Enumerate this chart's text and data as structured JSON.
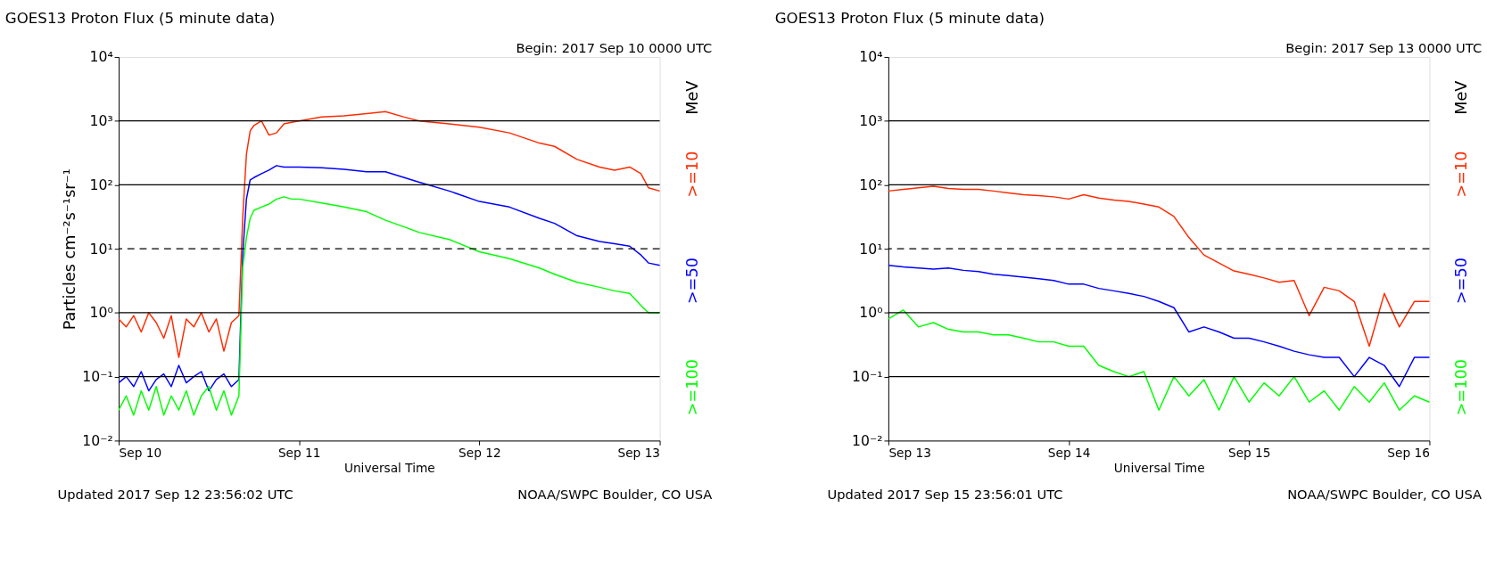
{
  "chart_data": [
    {
      "type": "line",
      "title": "GOES13 Proton Flux (5 minute data)",
      "subtitle": "Begin: 2017 Sep 10 0000 UTC",
      "xlabel": "Universal Time",
      "ylabel": "Particles cm⁻²s⁻¹sr⁻¹",
      "legend": "right",
      "legend_title": "MeV",
      "log": true,
      "annotations": [
        "Updated 2017 Sep 12 23:56:02 UTC",
        "NOAA/SWPC Boulder, CO USA"
      ],
      "xlim": [
        "2017-09-10T00:00",
        "2017-09-13T00:00"
      ],
      "xticks": [
        {
          "value": "2017-09-10T00:00",
          "label": "Sep 10"
        },
        {
          "value": "2017-09-11T00:00",
          "label": "Sep 11"
        },
        {
          "value": "2017-09-12T00:00",
          "label": "Sep 12"
        },
        {
          "value": "2017-09-13T00:00",
          "label": "Sep 13"
        }
      ],
      "ylim": [
        0.01,
        10000
      ],
      "yticks": [
        {
          "value": 0.01,
          "label": "10⁻²"
        },
        {
          "value": 0.1,
          "label": "10⁻¹"
        },
        {
          "value": 1,
          "label": "10⁰"
        },
        {
          "value": 10,
          "label": "10¹"
        },
        {
          "value": 100,
          "label": "10²"
        },
        {
          "value": 1000,
          "label": "10³"
        },
        {
          "value": 10000,
          "label": "10⁴"
        }
      ],
      "ref_lines": [
        {
          "axis": "y",
          "value": 1000,
          "line_style": "solid",
          "color": "#000000"
        },
        {
          "axis": "y",
          "value": 100,
          "line_style": "solid",
          "color": "#000000"
        },
        {
          "axis": "y",
          "value": 10,
          "line_style": "dashed",
          "color": "#000000"
        },
        {
          "axis": "y",
          "value": 1,
          "line_style": "solid",
          "color": "#000000"
        },
        {
          "axis": "y",
          "value": 0.1,
          "line_style": "solid",
          "color": "#000000"
        }
      ],
      "x": [
        "2017-09-10T00:00",
        "2017-09-10T01:00",
        "2017-09-10T02:00",
        "2017-09-10T03:00",
        "2017-09-10T04:00",
        "2017-09-10T05:00",
        "2017-09-10T06:00",
        "2017-09-10T07:00",
        "2017-09-10T08:00",
        "2017-09-10T09:00",
        "2017-09-10T10:00",
        "2017-09-10T11:00",
        "2017-09-10T12:00",
        "2017-09-10T13:00",
        "2017-09-10T14:00",
        "2017-09-10T15:00",
        "2017-09-10T16:00",
        "2017-09-10T16:30",
        "2017-09-10T17:00",
        "2017-09-10T17:30",
        "2017-09-10T18:00",
        "2017-09-10T19:00",
        "2017-09-10T20:00",
        "2017-09-10T21:00",
        "2017-09-10T22:00",
        "2017-09-10T23:00",
        "2017-09-11T00:00",
        "2017-09-11T03:00",
        "2017-09-11T06:00",
        "2017-09-11T09:00",
        "2017-09-11T11:30",
        "2017-09-11T14:00",
        "2017-09-11T16:00",
        "2017-09-11T20:00",
        "2017-09-12T00:00",
        "2017-09-12T04:00",
        "2017-09-12T08:00",
        "2017-09-12T10:00",
        "2017-09-12T13:00",
        "2017-09-12T16:00",
        "2017-09-12T18:00",
        "2017-09-12T20:00",
        "2017-09-12T21:30",
        "2017-09-12T22:30",
        "2017-09-13T00:00"
      ],
      "series": [
        {
          "name": ">=10",
          "color": "#ff2a00",
          "values": [
            0.8,
            0.6,
            0.9,
            0.5,
            1.0,
            0.7,
            0.4,
            0.9,
            0.2,
            0.8,
            0.6,
            1.0,
            0.5,
            0.8,
            0.25,
            0.7,
            0.9,
            30,
            300,
            700,
            850,
            1000,
            600,
            650,
            900,
            950,
            1000,
            1150,
            1200,
            1300,
            1400,
            1150,
            1000,
            900,
            800,
            650,
            450,
            400,
            250,
            190,
            170,
            190,
            150,
            90,
            80
          ]
        },
        {
          "name": ">=50",
          "color": "#0000ff",
          "values": [
            0.08,
            0.1,
            0.07,
            0.12,
            0.06,
            0.09,
            0.11,
            0.07,
            0.15,
            0.08,
            0.1,
            0.12,
            0.06,
            0.09,
            0.11,
            0.07,
            0.09,
            8,
            60,
            120,
            130,
            150,
            170,
            200,
            190,
            190,
            190,
            185,
            175,
            160,
            160,
            130,
            110,
            80,
            55,
            45,
            30,
            25,
            16,
            13,
            12,
            11,
            8,
            6,
            5.5
          ]
        },
        {
          "name": ">=100",
          "color": "#00ff00",
          "values": [
            0.03,
            0.05,
            0.025,
            0.06,
            0.03,
            0.07,
            0.025,
            0.05,
            0.03,
            0.06,
            0.025,
            0.05,
            0.07,
            0.03,
            0.06,
            0.025,
            0.05,
            5,
            15,
            30,
            40,
            45,
            50,
            60,
            65,
            60,
            60,
            52,
            45,
            38,
            28,
            22,
            18,
            14,
            9,
            7,
            5,
            4,
            3,
            2.5,
            2.2,
            2,
            1.3,
            1.0,
            1.0
          ]
        }
      ]
    },
    {
      "type": "line",
      "title": "GOES13 Proton Flux (5 minute data)",
      "subtitle": "Begin: 2017 Sep 13 0000 UTC",
      "xlabel": "Universal Time",
      "legend": "right",
      "legend_title": "MeV",
      "log": true,
      "annotations": [
        "Updated 2017 Sep 15 23:56:01 UTC",
        "NOAA/SWPC Boulder, CO USA"
      ],
      "xlim": [
        "2017-09-13T00:00",
        "2017-09-16T00:00"
      ],
      "xticks": [
        {
          "value": "2017-09-13T00:00",
          "label": "Sep 13"
        },
        {
          "value": "2017-09-14T00:00",
          "label": "Sep 14"
        },
        {
          "value": "2017-09-15T00:00",
          "label": "Sep 15"
        },
        {
          "value": "2017-09-16T00:00",
          "label": "Sep 16"
        }
      ],
      "ylim": [
        0.01,
        10000
      ],
      "yticks": [
        {
          "value": 0.01,
          "label": "10⁻²"
        },
        {
          "value": 0.1,
          "label": "10⁻¹"
        },
        {
          "value": 1,
          "label": "10⁰"
        },
        {
          "value": 10,
          "label": "10¹"
        },
        {
          "value": 100,
          "label": "10²"
        },
        {
          "value": 1000,
          "label": "10³"
        },
        {
          "value": 10000,
          "label": "10⁴"
        }
      ],
      "ref_lines": [
        {
          "axis": "y",
          "value": 1000,
          "line_style": "solid",
          "color": "#000000"
        },
        {
          "axis": "y",
          "value": 100,
          "line_style": "solid",
          "color": "#000000"
        },
        {
          "axis": "y",
          "value": 10,
          "line_style": "dashed",
          "color": "#000000"
        },
        {
          "axis": "y",
          "value": 1,
          "line_style": "solid",
          "color": "#000000"
        },
        {
          "axis": "y",
          "value": 0.1,
          "line_style": "solid",
          "color": "#000000"
        }
      ],
      "x": [
        "2017-09-13T00:00",
        "2017-09-13T02:00",
        "2017-09-13T04:00",
        "2017-09-13T06:00",
        "2017-09-13T08:00",
        "2017-09-13T10:00",
        "2017-09-13T12:00",
        "2017-09-13T14:00",
        "2017-09-13T16:00",
        "2017-09-13T18:00",
        "2017-09-13T20:00",
        "2017-09-13T22:00",
        "2017-09-14T00:00",
        "2017-09-14T02:00",
        "2017-09-14T04:00",
        "2017-09-14T06:00",
        "2017-09-14T08:00",
        "2017-09-14T10:00",
        "2017-09-14T12:00",
        "2017-09-14T14:00",
        "2017-09-14T16:00",
        "2017-09-14T18:00",
        "2017-09-14T20:00",
        "2017-09-14T22:00",
        "2017-09-15T00:00",
        "2017-09-15T02:00",
        "2017-09-15T04:00",
        "2017-09-15T06:00",
        "2017-09-15T08:00",
        "2017-09-15T10:00",
        "2017-09-15T12:00",
        "2017-09-15T14:00",
        "2017-09-15T16:00",
        "2017-09-15T18:00",
        "2017-09-15T20:00",
        "2017-09-15T22:00",
        "2017-09-16T00:00"
      ],
      "series": [
        {
          "name": ">=10",
          "color": "#ff2a00",
          "values": [
            80,
            85,
            90,
            95,
            88,
            85,
            85,
            80,
            75,
            70,
            68,
            65,
            60,
            70,
            62,
            58,
            55,
            50,
            45,
            32,
            15,
            8,
            6,
            4.5,
            4,
            3.5,
            3,
            3.2,
            0.9,
            2.5,
            2.2,
            1.5,
            0.3,
            2,
            0.6,
            1.5,
            1.5
          ]
        },
        {
          "name": ">=50",
          "color": "#0000ff",
          "values": [
            5.5,
            5.2,
            5,
            4.8,
            5,
            4.6,
            4.4,
            4,
            3.8,
            3.6,
            3.4,
            3.2,
            2.8,
            2.8,
            2.4,
            2.2,
            2,
            1.8,
            1.5,
            1.2,
            0.5,
            0.6,
            0.5,
            0.4,
            0.4,
            0.35,
            0.3,
            0.25,
            0.22,
            0.2,
            0.2,
            0.1,
            0.2,
            0.15,
            0.07,
            0.2,
            0.2
          ]
        },
        {
          "name": ">=100",
          "color": "#00ff00",
          "values": [
            0.8,
            1.1,
            0.6,
            0.7,
            0.55,
            0.5,
            0.5,
            0.45,
            0.45,
            0.4,
            0.35,
            0.35,
            0.3,
            0.3,
            0.15,
            0.12,
            0.1,
            0.12,
            0.03,
            0.1,
            0.05,
            0.09,
            0.03,
            0.1,
            0.04,
            0.08,
            0.05,
            0.1,
            0.04,
            0.06,
            0.03,
            0.07,
            0.04,
            0.08,
            0.03,
            0.05,
            0.04
          ]
        }
      ]
    }
  ]
}
